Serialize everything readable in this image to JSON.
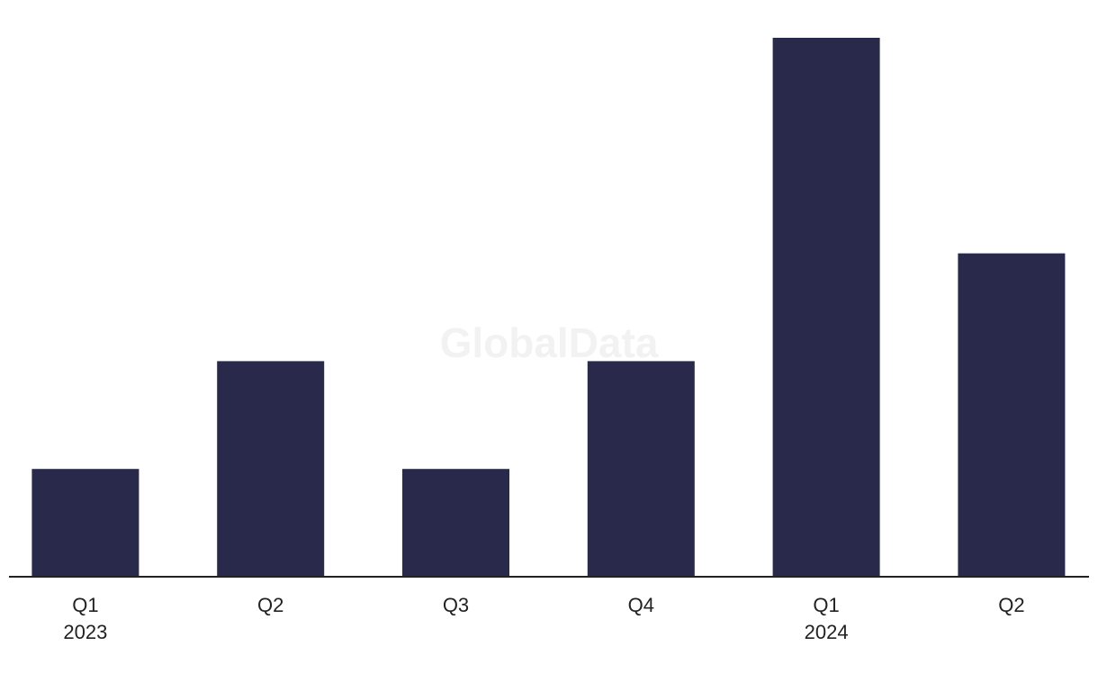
{
  "chart_data": {
    "type": "bar",
    "watermark": "GlobalData",
    "categories": [
      "Q1",
      "Q2",
      "Q3",
      "Q4",
      "Q1",
      "Q2"
    ],
    "year_labels": [
      "2023",
      null,
      null,
      null,
      "2024",
      null
    ],
    "values": [
      1,
      2,
      1,
      2,
      5,
      3
    ],
    "color": "#29294b",
    "ylim": [
      0,
      5
    ]
  }
}
